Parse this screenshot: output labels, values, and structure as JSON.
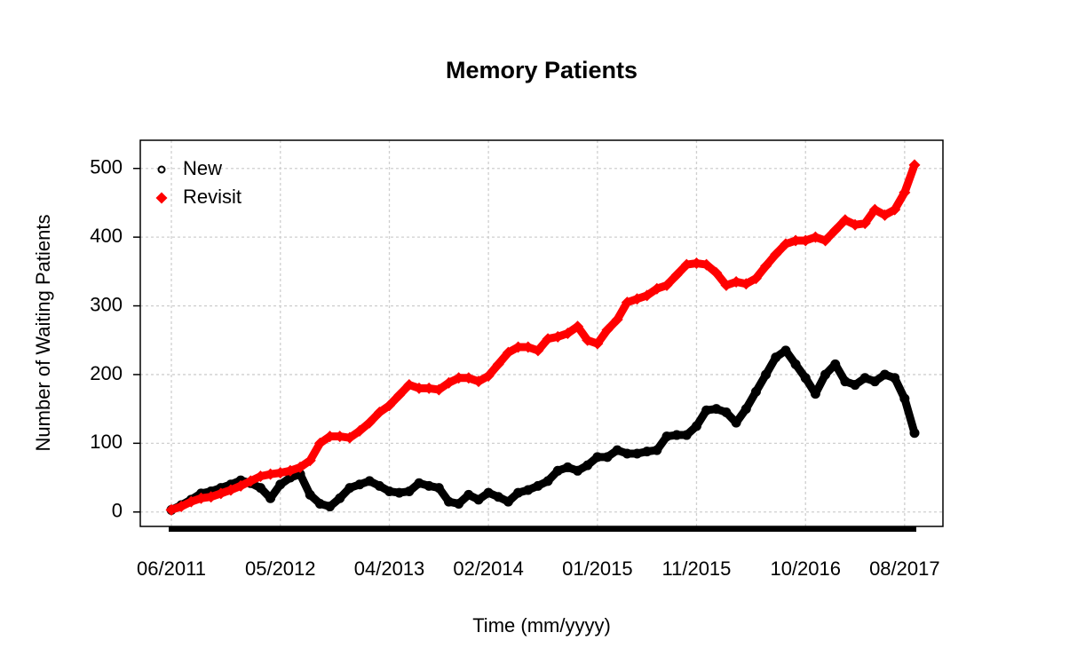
{
  "chart_data": {
    "type": "scatter",
    "title": "Memory Patients",
    "x_label": "Time (mm/yyyy)",
    "y_label": "Number of Waiting Patients",
    "x": [
      "2011-06",
      "2011-07",
      "2011-08",
      "2011-09",
      "2011-10",
      "2011-11",
      "2011-12",
      "2012-01",
      "2012-02",
      "2012-03",
      "2012-04",
      "2012-05",
      "2012-06",
      "2012-07",
      "2012-08",
      "2012-09",
      "2012-10",
      "2012-11",
      "2012-12",
      "2013-01",
      "2013-02",
      "2013-03",
      "2013-04",
      "2013-05",
      "2013-06",
      "2013-07",
      "2013-08",
      "2013-09",
      "2013-10",
      "2013-11",
      "2013-12",
      "2014-01",
      "2014-02",
      "2014-03",
      "2014-04",
      "2014-05",
      "2014-06",
      "2014-07",
      "2014-08",
      "2014-09",
      "2014-10",
      "2014-11",
      "2014-12",
      "2015-01",
      "2015-02",
      "2015-03",
      "2015-04",
      "2015-05",
      "2015-06",
      "2015-07",
      "2015-08",
      "2015-09",
      "2015-10",
      "2015-11",
      "2015-12",
      "2016-01",
      "2016-02",
      "2016-03",
      "2016-04",
      "2016-05",
      "2016-06",
      "2016-07",
      "2016-08",
      "2016-09",
      "2016-10",
      "2016-11",
      "2016-12",
      "2017-01",
      "2017-02",
      "2017-03",
      "2017-04",
      "2017-05",
      "2017-06",
      "2017-07",
      "2017-08",
      "2017-09"
    ],
    "series": [
      {
        "name": "New",
        "color": "#000000",
        "marker": "circle",
        "values": [
          3,
          10,
          18,
          27,
          30,
          35,
          40,
          46,
          42,
          35,
          20,
          40,
          50,
          55,
          25,
          12,
          8,
          20,
          35,
          40,
          45,
          38,
          30,
          28,
          30,
          42,
          38,
          35,
          15,
          12,
          25,
          18,
          28,
          22,
          15,
          28,
          32,
          38,
          45,
          60,
          65,
          60,
          68,
          80,
          80,
          90,
          85,
          85,
          88,
          90,
          110,
          112,
          112,
          125,
          148,
          150,
          145,
          130,
          150,
          175,
          200,
          225,
          235,
          215,
          195,
          172,
          200,
          215,
          190,
          185,
          195,
          190,
          200,
          195,
          165,
          115
        ]
      },
      {
        "name": "Revisit",
        "color": "#ff0000",
        "marker": "diamond",
        "values": [
          3,
          8,
          15,
          20,
          22,
          27,
          32,
          38,
          45,
          52,
          55,
          57,
          60,
          65,
          75,
          100,
          110,
          110,
          108,
          118,
          130,
          145,
          155,
          170,
          185,
          180,
          180,
          178,
          188,
          195,
          195,
          190,
          198,
          215,
          232,
          240,
          240,
          235,
          252,
          255,
          260,
          270,
          250,
          245,
          265,
          280,
          305,
          310,
          315,
          325,
          330,
          345,
          360,
          362,
          360,
          348,
          330,
          335,
          332,
          340,
          358,
          375,
          390,
          395,
          395,
          400,
          395,
          410,
          425,
          418,
          420,
          440,
          432,
          440,
          465,
          505
        ]
      }
    ],
    "xlim": [
      "2011-06",
      "2017-09"
    ],
    "xticks": [
      {
        "value": "2011-06",
        "label": "06/2011"
      },
      {
        "value": "2012-05",
        "label": "05/2012"
      },
      {
        "value": "2013-04",
        "label": "04/2013"
      },
      {
        "value": "2014-02",
        "label": "02/2014"
      },
      {
        "value": "2015-01",
        "label": "01/2015"
      },
      {
        "value": "2015-11",
        "label": "11/2015"
      },
      {
        "value": "2016-10",
        "label": "10/2016"
      },
      {
        "value": "2017-08",
        "label": "08/2017"
      }
    ],
    "ylim": [
      -21,
      541
    ],
    "yticks": [
      0,
      100,
      200,
      300,
      400,
      500
    ],
    "grid": true,
    "legend": "top-left"
  }
}
